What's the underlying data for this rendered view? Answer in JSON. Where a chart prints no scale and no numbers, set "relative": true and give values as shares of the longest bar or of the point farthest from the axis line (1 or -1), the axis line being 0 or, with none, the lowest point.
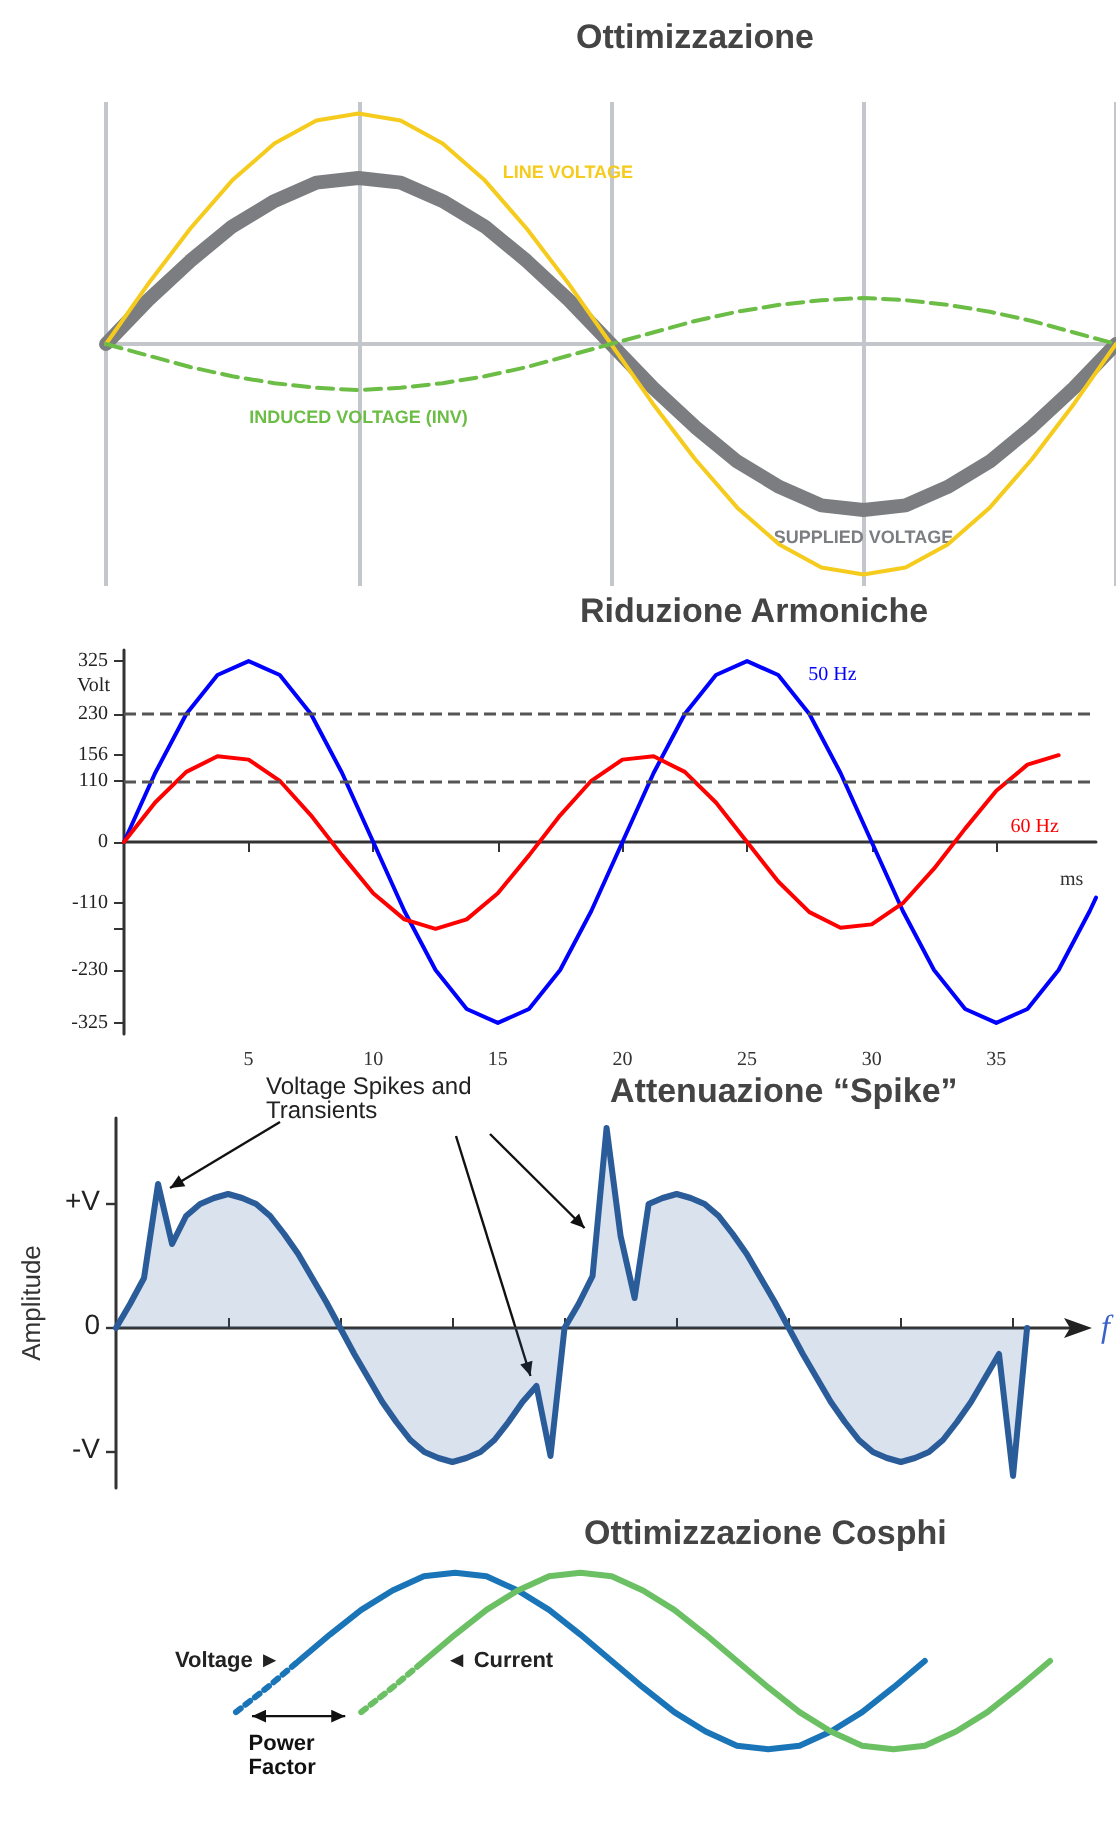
{
  "chart_data": [
    {
      "type": "line",
      "title": "Ottimizzazione",
      "relative": true,
      "grid": "x",
      "tick_labels": false,
      "categories": [
        null,
        null,
        null,
        null,
        null,
        null,
        null,
        null,
        null,
        null,
        null,
        null,
        null,
        null,
        null,
        null,
        null,
        null,
        null,
        null,
        null,
        null,
        null,
        null,
        null
      ],
      "series": [
        {
          "name": "LINE VOLTAGE",
          "color": "#f5cb1d",
          "values": [
            0,
            0.26,
            0.5,
            0.71,
            0.87,
            0.97,
            1,
            0.97,
            0.87,
            0.71,
            0.5,
            0.26,
            0,
            -0.26,
            -0.5,
            -0.71,
            -0.87,
            -0.97,
            -1,
            -0.97,
            -0.87,
            -0.71,
            -0.5,
            -0.26,
            0
          ]
        },
        {
          "name": "SUPPLIED VOLTAGE",
          "color": "#7b7d81",
          "values": [
            0,
            0.19,
            0.36,
            0.51,
            0.62,
            0.7,
            0.72,
            0.7,
            0.62,
            0.51,
            0.36,
            0.19,
            0,
            -0.19,
            -0.36,
            -0.51,
            -0.62,
            -0.7,
            -0.72,
            -0.7,
            -0.62,
            -0.51,
            -0.36,
            -0.19,
            0
          ]
        },
        {
          "name": "INDUCED VOLTAGE (INV)",
          "color": "#6cbd45",
          "line_style": "dashed",
          "values": [
            0,
            -0.05,
            -0.1,
            -0.14,
            -0.17,
            -0.19,
            -0.2,
            -0.19,
            -0.17,
            -0.14,
            -0.1,
            -0.05,
            0,
            0.05,
            0.1,
            0.14,
            0.17,
            0.19,
            0.2,
            0.19,
            0.17,
            0.14,
            0.1,
            0.05,
            0
          ]
        }
      ]
    },
    {
      "type": "line",
      "title": "Riduzione Armoniche",
      "xlabel": "ms",
      "ylabel": "Volt",
      "grid": false,
      "xlim": [
        0,
        39
      ],
      "xticks": [
        5,
        10,
        15,
        20,
        25,
        30,
        35
      ],
      "ylim": [
        -345,
        345
      ],
      "yticks": [
        -325,
        -230,
        {
          "value": -156,
          "label": null
        },
        -110,
        0,
        110,
        156,
        230,
        325
      ],
      "ref_lines": [
        {
          "axis": "y",
          "value": 230,
          "color": "#555555",
          "line_style": "dashed"
        },
        {
          "axis": "y",
          "value": 110,
          "color": "#555555",
          "line_style": "dashed"
        }
      ],
      "series": [
        {
          "name": "50 Hz",
          "color": "#0000ff",
          "x": [
            0,
            1.25,
            2.5,
            3.75,
            5,
            6.25,
            7.5,
            8.75,
            10,
            11.25,
            12.5,
            13.75,
            15,
            16.25,
            17.5,
            18.75,
            20,
            21.25,
            22.5,
            23.75,
            25,
            26.25,
            27.5,
            28.75,
            30,
            31.25,
            32.5,
            33.75,
            35,
            36.25,
            37.5,
            38.75,
            39
          ],
          "values": [
            0,
            124,
            230,
            300,
            325,
            300,
            230,
            124,
            0,
            -124,
            -230,
            -300,
            -325,
            -300,
            -230,
            -124,
            0,
            124,
            230,
            300,
            325,
            300,
            230,
            124,
            0,
            -124,
            -230,
            -300,
            -325,
            -300,
            -230,
            -124,
            -100
          ]
        },
        {
          "name": "60 Hz",
          "color": "#ff0000",
          "x": [
            0,
            1.25,
            2.5,
            3.75,
            5,
            6.25,
            7.5,
            8.75,
            10,
            11.25,
            12.5,
            13.75,
            15,
            16.25,
            17.5,
            18.75,
            20,
            21.25,
            22.5,
            23.75,
            25,
            26.25,
            27.5,
            28.75,
            30,
            31.25,
            32.5,
            33.75,
            35,
            36.25,
            37.5
          ],
          "values": [
            0,
            71,
            126,
            154,
            148,
            110,
            48,
            -24,
            -92,
            -139,
            -156,
            -139,
            -92,
            -24,
            48,
            110,
            148,
            154,
            126,
            71,
            0,
            -71,
            -126,
            -154,
            -148,
            -110,
            -48,
            24,
            92,
            139,
            156
          ]
        }
      ]
    },
    {
      "type": "area",
      "title": "Attenuazione “Spike”",
      "xlabel": "f",
      "ylabel": "Amplitude",
      "grid": false,
      "tick_labels": false,
      "relative": true,
      "annotations": [
        "Voltage Spikes and Transients",
        "+V",
        "0",
        "-V"
      ],
      "categories": [
        null,
        null,
        null,
        null,
        null,
        null,
        null,
        null,
        null,
        null,
        null,
        null,
        null,
        null,
        null,
        null,
        null,
        null,
        null,
        null,
        null,
        null,
        null,
        null,
        null,
        null,
        null,
        null,
        null,
        null,
        null,
        null,
        null,
        null,
        null,
        null,
        null,
        null,
        null,
        null,
        null,
        null,
        null,
        null,
        null,
        null,
        null,
        null,
        null,
        null,
        null,
        null,
        null,
        null,
        null,
        null,
        null,
        null,
        null,
        null,
        null,
        null,
        null,
        null,
        null,
        null,
        null,
        null,
        null
      ],
      "series": [
        {
          "color": "#2b5c9a",
          "values": [
            0,
            0.12,
            0.25,
            0.72,
            0.42,
            0.56,
            0.62,
            0.65,
            0.67,
            0.65,
            0.62,
            0.56,
            0.47,
            0.37,
            0.25,
            0.13,
            0,
            -0.13,
            -0.25,
            -0.37,
            -0.47,
            -0.56,
            -0.62,
            -0.65,
            -0.67,
            -0.65,
            -0.62,
            -0.56,
            -0.47,
            -0.37,
            -0.29,
            -0.64,
            0,
            0.12,
            0.26,
            1,
            0.46,
            0.15,
            0.62,
            0.65,
            0.67,
            0.65,
            0.62,
            0.56,
            0.47,
            0.37,
            0.25,
            0.13,
            0,
            -0.13,
            -0.25,
            -0.37,
            -0.47,
            -0.56,
            -0.62,
            -0.65,
            -0.67,
            -0.65,
            -0.62,
            -0.56,
            -0.47,
            -0.37,
            -0.25,
            -0.13,
            -0.74,
            0,
            null,
            null,
            null
          ]
        }
      ]
    },
    {
      "type": "line",
      "title": "Ottimizzazione Cosphi",
      "relative": true,
      "tick_labels": false,
      "annotations": [
        "Power Factor"
      ],
      "categories": [
        null,
        null,
        null,
        null,
        null,
        null,
        null,
        null,
        null,
        null,
        null,
        null,
        null,
        null,
        null,
        null,
        null,
        null,
        null,
        null,
        null,
        null,
        null,
        null,
        null,
        null,
        null
      ],
      "series": [
        {
          "name": "Voltage ►",
          "color": "#1a75b8",
          "values": [
            null,
            null,
            0.5,
            0.65,
            0.79,
            0.9,
            0.98,
            1,
            0.98,
            0.9,
            0.79,
            0.65,
            0.5,
            0.35,
            0.21,
            0.1,
            0.02,
            0,
            0.02,
            0.1,
            0.21,
            0.35,
            0.5,
            null,
            null,
            null,
            null
          ]
        },
        {
          "color": "#1a75b8",
          "line_style": "dotted",
          "values": [
            0.21,
            0.35,
            0.5,
            null,
            null,
            null,
            null,
            null,
            null,
            null,
            null,
            null,
            null,
            null,
            null,
            null,
            null,
            null,
            null,
            null,
            null,
            null,
            null,
            null,
            null,
            null,
            null
          ]
        },
        {
          "name": "◄ Current",
          "color": "#6cc064",
          "values": [
            null,
            null,
            null,
            null,
            null,
            null,
            0.5,
            0.65,
            0.79,
            0.9,
            0.98,
            1,
            0.98,
            0.9,
            0.79,
            0.65,
            0.5,
            0.35,
            0.21,
            0.1,
            0.02,
            0,
            0.02,
            0.1,
            0.21,
            0.35,
            0.5
          ]
        },
        {
          "color": "#6cc064",
          "line_style": "dotted",
          "values": [
            null,
            null,
            null,
            null,
            0.21,
            0.35,
            0.5,
            null,
            null,
            null,
            null,
            null,
            null,
            null,
            null,
            null,
            null,
            null,
            null,
            null,
            null,
            null,
            null,
            null,
            null,
            null,
            null
          ]
        }
      ]
    }
  ]
}
